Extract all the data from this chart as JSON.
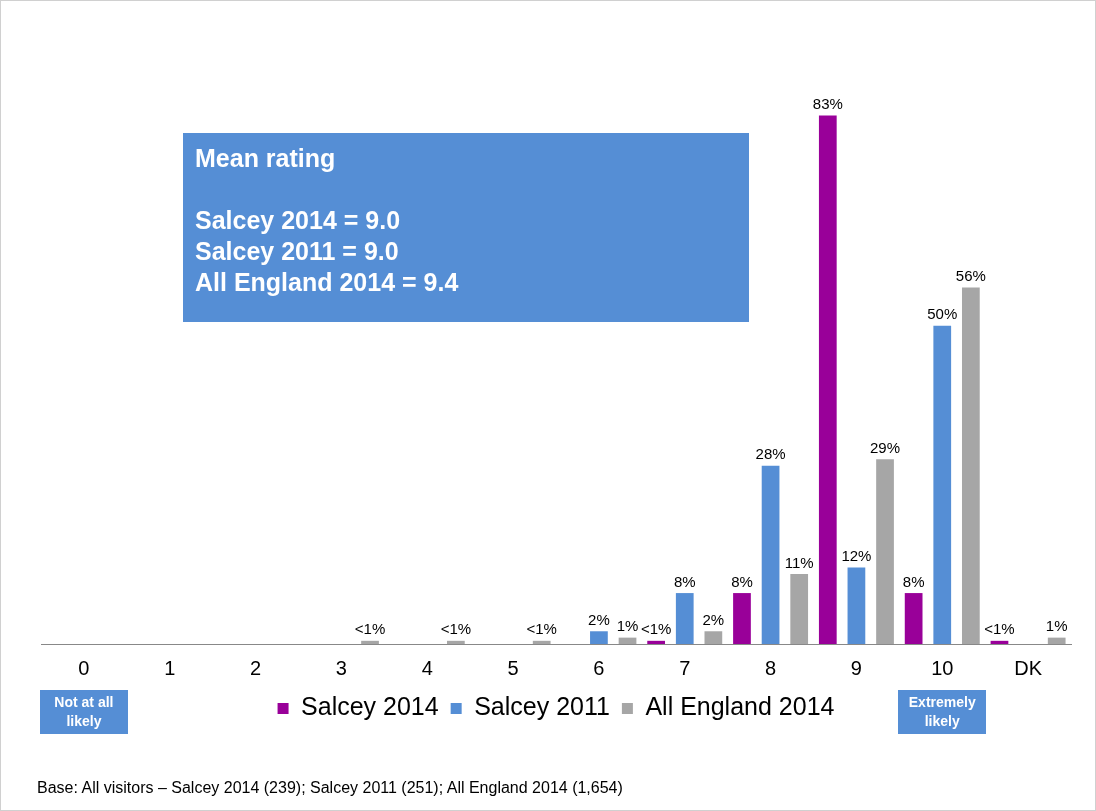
{
  "chart_data": {
    "type": "bar",
    "categories": [
      "0",
      "1",
      "2",
      "3",
      "4",
      "5",
      "6",
      "7",
      "8",
      "9",
      "10",
      "DK"
    ],
    "series": [
      {
        "name": "Salcey 2014",
        "color": "#990099",
        "values": [
          0,
          0,
          0,
          0,
          0,
          0,
          0,
          0.5,
          8,
          83,
          8,
          0.5
        ],
        "value_labels": [
          null,
          null,
          null,
          null,
          null,
          null,
          null,
          "<1%",
          "8%",
          "83%",
          "8%",
          "<1%"
        ]
      },
      {
        "name": "Salcey 2011",
        "color": "#558ed5",
        "values": [
          0,
          0,
          0,
          0,
          0,
          0,
          2,
          8,
          28,
          12,
          50,
          0
        ],
        "value_labels": [
          null,
          null,
          null,
          null,
          null,
          null,
          "2%",
          "8%",
          "28%",
          "12%",
          "50%",
          null
        ]
      },
      {
        "name": "All England 2014",
        "color": "#a6a6a6",
        "values": [
          0,
          0,
          0,
          0.5,
          0.5,
          0.5,
          1,
          2,
          11,
          29,
          56,
          1
        ],
        "value_labels": [
          null,
          null,
          null,
          "<1%",
          "<1%",
          "<1%",
          "1%",
          "2%",
          "11%",
          "29%",
          "56%",
          "1%"
        ]
      }
    ],
    "legend": "bottom",
    "grid": false,
    "annotations": [
      "Mean rating\n\nSalcey 2014 = 9.0\nSalcey 2011 = 9.0\nAll England 2014 = 9.4",
      "Not at all likely",
      "Extremely likely",
      "Base: All visitors – Salcey 2014 (239); Salcey 2011 (251); All England 2014 (1,654)"
    ]
  }
}
